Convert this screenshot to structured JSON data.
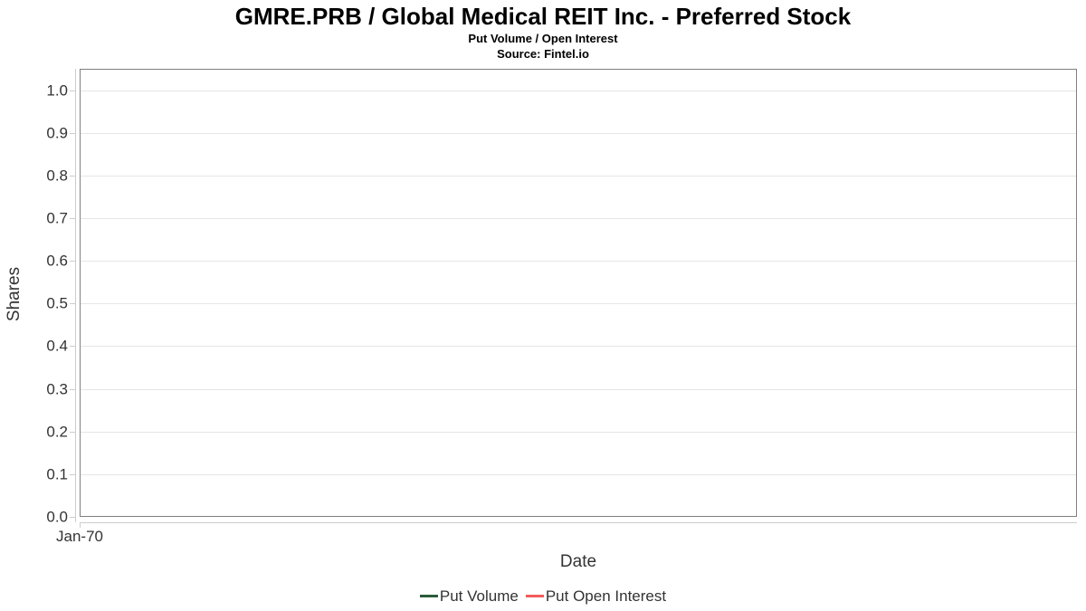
{
  "chart_data": {
    "type": "line",
    "title": "GMRE.PRB / Global Medical REIT Inc. - Preferred Stock",
    "subtitle": "Put Volume / Open Interest",
    "source": "Source: Fintel.io",
    "xlabel": "Date",
    "ylabel": "Shares",
    "x_ticks": [
      "Jan-70"
    ],
    "y_ticks": [
      0.0,
      0.1,
      0.2,
      0.3,
      0.4,
      0.5,
      0.6,
      0.7,
      0.8,
      0.9,
      1.0
    ],
    "y_tick_labels": [
      "0.0",
      "0.1",
      "0.2",
      "0.3",
      "0.4",
      "0.5",
      "0.6",
      "0.7",
      "0.8",
      "0.9",
      "1.0"
    ],
    "ylim": [
      0,
      1.05
    ],
    "grid": true,
    "legend_position": "bottom-center",
    "series": [
      {
        "name": "Put Volume",
        "color": "#2b5c3b",
        "x": [],
        "values": []
      },
      {
        "name": "Put Open Interest",
        "color": "#f45b5b",
        "x": [],
        "values": []
      }
    ],
    "colors": {
      "plot_border": "#7f7f7f",
      "gridline": "#e6e6e6",
      "axis_line": "#cccccc",
      "text": "#333333",
      "title_text": "#000000",
      "background": "#ffffff"
    }
  }
}
